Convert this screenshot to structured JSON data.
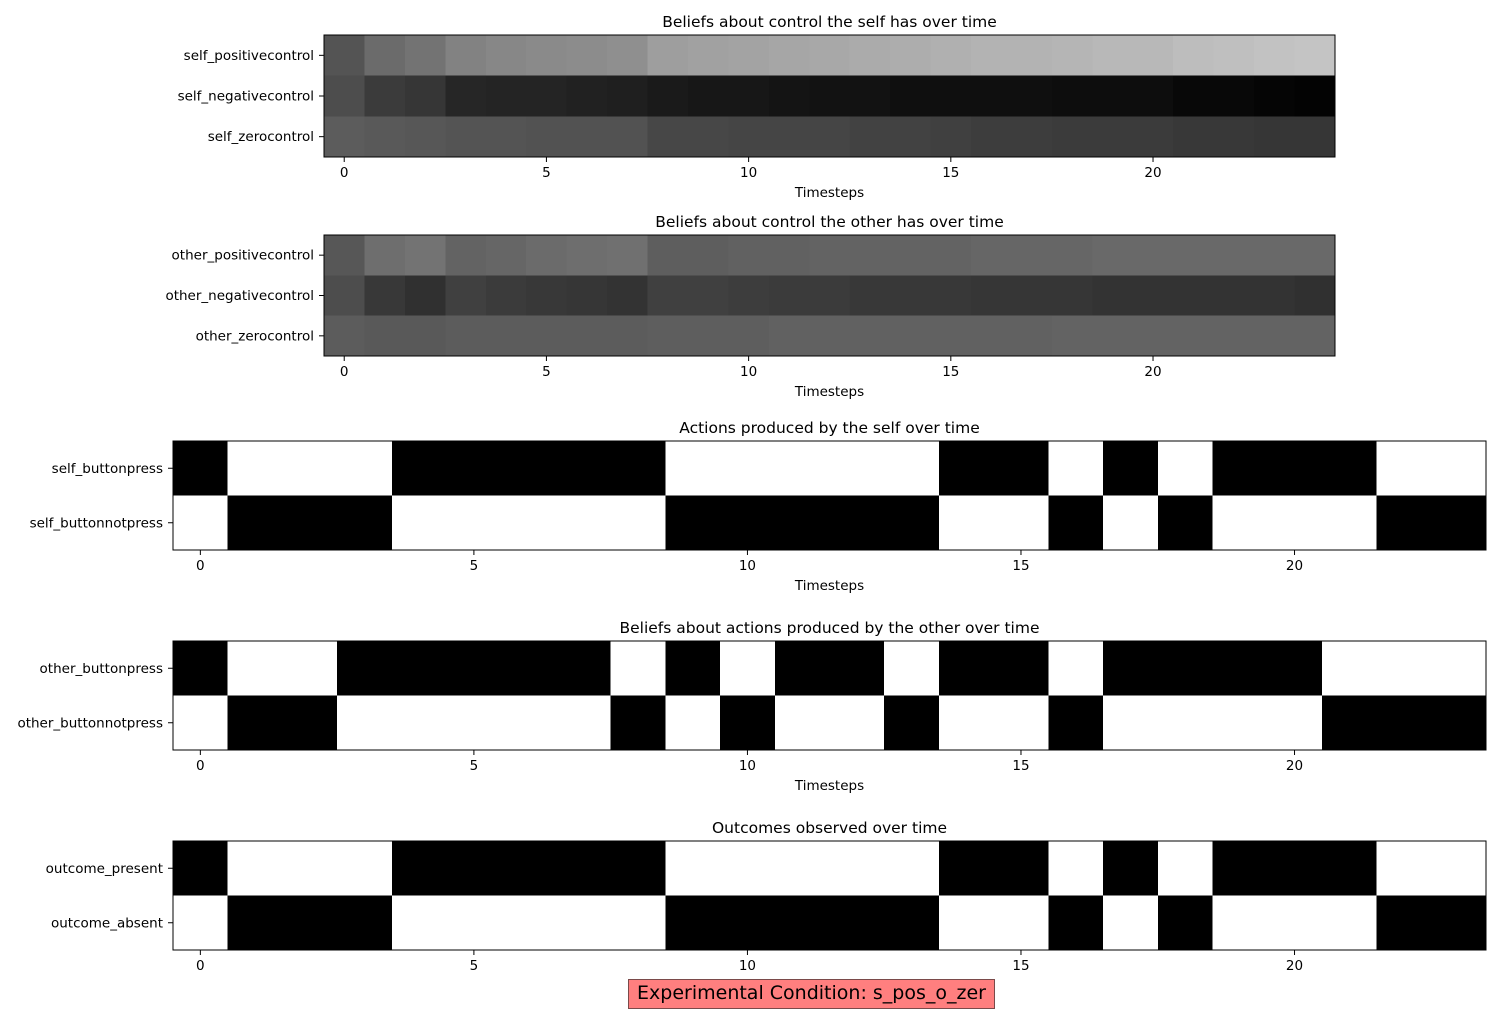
{
  "chart_data": [
    {
      "type": "heatmap",
      "title": "Beliefs about control the self has over time",
      "xlabel": "Timesteps",
      "rows": [
        "self_positivecontrol",
        "self_negativecontrol",
        "self_zerocontrol"
      ],
      "x_ticks": [
        0,
        5,
        10,
        15,
        20
      ],
      "colormap": "gray",
      "values": [
        [
          0.33,
          0.42,
          0.45,
          0.51,
          0.53,
          0.54,
          0.55,
          0.56,
          0.62,
          0.63,
          0.64,
          0.65,
          0.66,
          0.67,
          0.68,
          0.69,
          0.7,
          0.7,
          0.71,
          0.72,
          0.72,
          0.74,
          0.75,
          0.76,
          0.77
        ],
        [
          0.3,
          0.23,
          0.21,
          0.15,
          0.14,
          0.14,
          0.13,
          0.12,
          0.1,
          0.09,
          0.09,
          0.08,
          0.07,
          0.07,
          0.06,
          0.06,
          0.06,
          0.06,
          0.05,
          0.05,
          0.05,
          0.03,
          0.03,
          0.02,
          0.01
        ],
        [
          0.36,
          0.35,
          0.34,
          0.33,
          0.33,
          0.32,
          0.32,
          0.32,
          0.28,
          0.28,
          0.27,
          0.27,
          0.27,
          0.26,
          0.26,
          0.25,
          0.24,
          0.24,
          0.23,
          0.23,
          0.23,
          0.22,
          0.22,
          0.21,
          0.21
        ]
      ]
    },
    {
      "type": "heatmap",
      "title": "Beliefs about control the other has over time",
      "xlabel": "Timesteps",
      "rows": [
        "other_positivecontrol",
        "other_negativecontrol",
        "other_zerocontrol"
      ],
      "x_ticks": [
        0,
        5,
        10,
        15,
        20
      ],
      "colormap": "gray",
      "values": [
        [
          0.34,
          0.43,
          0.45,
          0.39,
          0.4,
          0.42,
          0.43,
          0.44,
          0.37,
          0.37,
          0.38,
          0.38,
          0.39,
          0.39,
          0.39,
          0.39,
          0.4,
          0.4,
          0.4,
          0.41,
          0.41,
          0.41,
          0.41,
          0.41,
          0.41
        ],
        [
          0.3,
          0.22,
          0.19,
          0.25,
          0.23,
          0.22,
          0.21,
          0.2,
          0.25,
          0.25,
          0.24,
          0.23,
          0.23,
          0.22,
          0.22,
          0.22,
          0.21,
          0.21,
          0.21,
          0.2,
          0.2,
          0.2,
          0.2,
          0.2,
          0.19
        ],
        [
          0.36,
          0.35,
          0.35,
          0.36,
          0.36,
          0.36,
          0.36,
          0.36,
          0.37,
          0.37,
          0.37,
          0.38,
          0.38,
          0.38,
          0.38,
          0.38,
          0.38,
          0.38,
          0.39,
          0.39,
          0.39,
          0.39,
          0.39,
          0.39,
          0.39
        ]
      ]
    },
    {
      "type": "heatmap",
      "title": "Actions produced by the self over time",
      "xlabel": "Timesteps",
      "rows": [
        "self_buttonpress",
        "self_buttonnotpress"
      ],
      "x_ticks": [
        0,
        5,
        10,
        15,
        20
      ],
      "colormap": "gray",
      "values": [
        [
          0,
          1,
          1,
          1,
          0,
          0,
          0,
          0,
          0,
          1,
          1,
          1,
          1,
          1,
          0,
          0,
          1,
          0,
          1,
          0,
          0,
          0,
          1,
          1
        ],
        [
          1,
          0,
          0,
          0,
          1,
          1,
          1,
          1,
          1,
          0,
          0,
          0,
          0,
          0,
          1,
          1,
          0,
          1,
          0,
          1,
          1,
          1,
          0,
          0
        ]
      ]
    },
    {
      "type": "heatmap",
      "title": "Beliefs about actions produced by the other over time",
      "xlabel": "Timesteps",
      "rows": [
        "other_buttonpress",
        "other_buttonnotpress"
      ],
      "x_ticks": [
        0,
        5,
        10,
        15,
        20
      ],
      "colormap": "gray",
      "values": [
        [
          0,
          1,
          1,
          0,
          0,
          0,
          0,
          0,
          1,
          0,
          1,
          0,
          0,
          1,
          0,
          0,
          1,
          0,
          0,
          0,
          0,
          1,
          1,
          1
        ],
        [
          1,
          0,
          0,
          1,
          1,
          1,
          1,
          1,
          0,
          1,
          0,
          1,
          1,
          0,
          1,
          1,
          0,
          1,
          1,
          1,
          1,
          0,
          0,
          0
        ]
      ]
    },
    {
      "type": "heatmap",
      "title": "Outcomes observed over time",
      "xlabel": "Timesteps",
      "rows": [
        "outcome_present",
        "outcome_absent"
      ],
      "x_ticks": [
        0,
        5,
        10,
        15,
        20
      ],
      "colormap": "gray",
      "values": [
        [
          0,
          1,
          1,
          1,
          0,
          0,
          0,
          0,
          0,
          1,
          1,
          1,
          1,
          1,
          0,
          0,
          1,
          0,
          1,
          0,
          0,
          0,
          1,
          1
        ],
        [
          1,
          0,
          0,
          0,
          1,
          1,
          1,
          1,
          1,
          0,
          0,
          0,
          0,
          0,
          1,
          1,
          0,
          1,
          0,
          1,
          1,
          1,
          0,
          0
        ]
      ]
    }
  ],
  "condition_label": "Experimental Condition: s_pos_o_zer"
}
